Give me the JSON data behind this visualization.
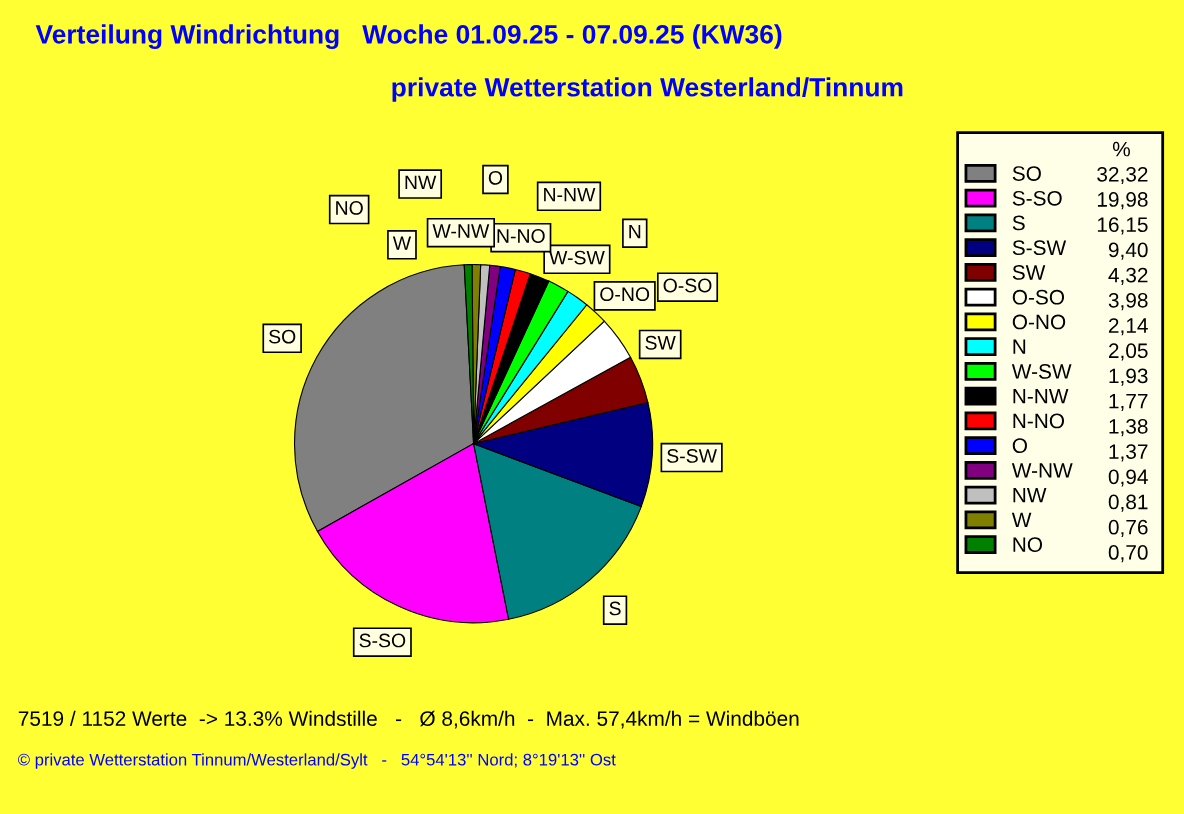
{
  "chart_data": {
    "type": "pie",
    "title": "Verteilung Windrichtung   Woche 01.09.25 - 07.09.25 (KW36)",
    "subtitle": "private Wetterstation Westerland/Tinnum",
    "legend_title": "%",
    "categories": [
      "SO",
      "S-SO",
      "S",
      "S-SW",
      "SW",
      "O-SO",
      "O-NO",
      "N",
      "W-SW",
      "N-NW",
      "N-NO",
      "O",
      "W-NW",
      "NW",
      "W",
      "NO"
    ],
    "values": [
      32.32,
      19.98,
      16.15,
      9.4,
      4.32,
      3.98,
      2.14,
      2.05,
      1.93,
      1.77,
      1.38,
      1.37,
      0.94,
      0.81,
      0.76,
      0.7
    ],
    "colors": [
      "#808080",
      "#ff00ff",
      "#008080",
      "#000080",
      "#800000",
      "#ffffff",
      "#ffff00",
      "#00ffff",
      "#00ff00",
      "#000000",
      "#ff0000",
      "#0000ff",
      "#800080",
      "#c0c0c0",
      "#808000",
      "#008000"
    ],
    "value_labels": [
      "32,32",
      "19,98",
      "16,15",
      "9,40",
      "4,32",
      "3,98",
      "2,14",
      "2,05",
      "1,93",
      "1,77",
      "1,38",
      "1,37",
      "0,94",
      "0,81",
      "0,76",
      "0,70"
    ],
    "legend": "right",
    "annotations": [
      "7519 / 1152 Werte  -> 13.3% Windstille   -   Ø 8,6km/h  -  Max. 57,4km/h = Windböen",
      "© private Wetterstation Tinnum/Westerland/Sylt   -   54°54'13'' Nord; 8°19'13'' Ost"
    ]
  }
}
